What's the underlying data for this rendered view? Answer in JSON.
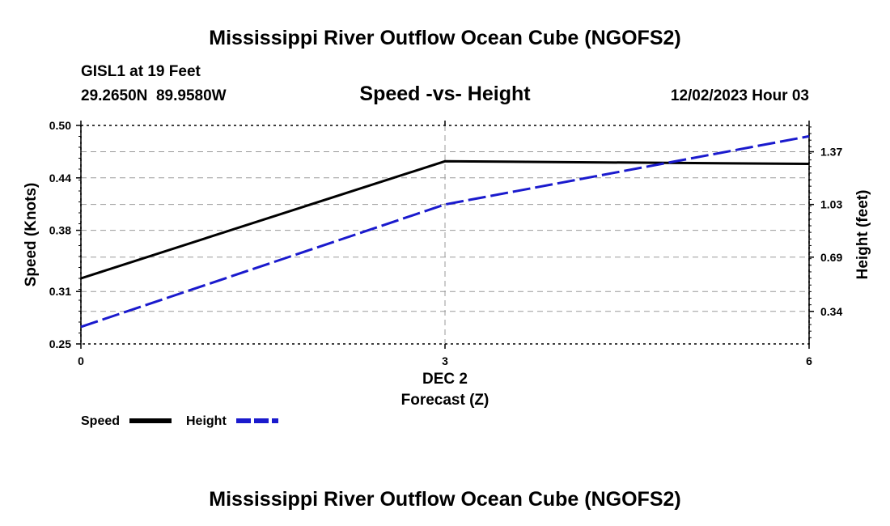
{
  "page": {
    "main_title": "Mississippi River Outflow Ocean Cube (NGOFS2)",
    "footer_title": "Mississippi River Outflow Ocean Cube (NGOFS2)",
    "station_line": "GISL1 at 19 Feet",
    "coords_line": "29.2650N  89.9580W",
    "date_line": "12/02/2023 Hour 03"
  },
  "chart_data": {
    "type": "line",
    "title": "Speed -vs- Height",
    "xlabel_date": "DEC 2",
    "xlabel": "Forecast (Z)",
    "ylabel": "Speed (Knots)",
    "y2label": "Height (feet)",
    "x": [
      0,
      3,
      6
    ],
    "x_ticks": [
      "0",
      "3",
      "6"
    ],
    "xlim": [
      0,
      6
    ],
    "ylim": [
      0.25,
      0.5
    ],
    "y_ticks": [
      "0.50",
      "0.44",
      "0.38",
      "0.31",
      "0.25"
    ],
    "y2lim": [
      0.13,
      1.54
    ],
    "y2_ticks": [
      "1.37",
      "1.03",
      "0.69",
      "0.34"
    ],
    "y2_tick_values": [
      1.37,
      1.03,
      0.69,
      0.34
    ],
    "grid": true,
    "series": [
      {
        "name": "Speed",
        "axis": "left",
        "color": "#000000",
        "style": "solid",
        "values": [
          0.325,
          0.459,
          0.456
        ]
      },
      {
        "name": "Height",
        "axis": "right",
        "color": "#1a1acd",
        "style": "dashed",
        "values": [
          0.24,
          1.03,
          1.47
        ]
      }
    ],
    "legend": [
      {
        "label": "Speed",
        "color": "#000000",
        "style": "solid"
      },
      {
        "label": "Height",
        "color": "#1a1acd",
        "style": "dashed"
      }
    ]
  }
}
